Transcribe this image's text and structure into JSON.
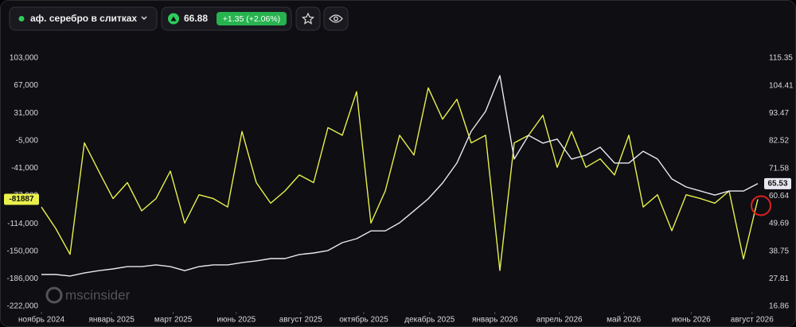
{
  "header": {
    "title": "аф. серебро в слитках",
    "price": "66.88",
    "change": "+1.35 (+2.06%)"
  },
  "chart_data": {
    "type": "line",
    "watermark": "mscinsider",
    "x": [
      0,
      2,
      4,
      6,
      8,
      10,
      12,
      14,
      16,
      18,
      20,
      22,
      24,
      26,
      28,
      30,
      32,
      34,
      36,
      38,
      40,
      42,
      44,
      46,
      48,
      50,
      52,
      54,
      56,
      58,
      60,
      62,
      64,
      66,
      68,
      70,
      72,
      74,
      76,
      78,
      80,
      82,
      84,
      86,
      88,
      90,
      92,
      94,
      96,
      98,
      100
    ],
    "xlim": [
      0,
      100
    ],
    "xticks": [
      {
        "value": 0,
        "label": "ноябрь 2024"
      },
      {
        "value": 9.8,
        "label": "январь 2025"
      },
      {
        "value": 18.4,
        "label": "март 2025"
      },
      {
        "value": 27.2,
        "label": "июнь 2025"
      },
      {
        "value": 36.2,
        "label": "август 2025"
      },
      {
        "value": 45,
        "label": "октябрь 2025"
      },
      {
        "value": 54.2,
        "label": "декабрь 2025"
      },
      {
        "value": 63.3,
        "label": "январь 2026"
      },
      {
        "value": 72.3,
        "label": "апрель 2026"
      },
      {
        "value": 81.3,
        "label": "май 2026"
      },
      {
        "value": 90.7,
        "label": "июнь 2026"
      },
      {
        "value": 99.2,
        "label": "август 2026"
      }
    ],
    "ylim": [
      -222000,
      103000
    ],
    "yticks": [
      {
        "value": 103000,
        "label": "103,000"
      },
      {
        "value": 67000,
        "label": "67,000"
      },
      {
        "value": 31000,
        "label": "31,000"
      },
      {
        "value": -5000,
        "label": "-5,000"
      },
      {
        "value": -41000,
        "label": "-41,000"
      },
      {
        "value": -77000,
        "label": "-77,000"
      },
      {
        "value": -114000,
        "label": "-114,000"
      },
      {
        "value": -150000,
        "label": "-150,000"
      },
      {
        "value": -186000,
        "label": "-186,000"
      },
      {
        "value": -222000,
        "label": "-222,000"
      }
    ],
    "y2lim": [
      16.86,
      115.35
    ],
    "y2ticks": [
      115.35,
      104.41,
      93.47,
      82.52,
      71.58,
      60.64,
      49.69,
      38.75,
      27.81,
      16.86
    ],
    "grid": false,
    "series": [
      {
        "color": "#e9f04c",
        "axis": "y",
        "values": [
          -92000,
          -120000,
          -154000,
          -8000,
          -45000,
          -81000,
          -60000,
          -97000,
          -81000,
          -45000,
          -113000,
          -76000,
          -81000,
          -92000,
          7000,
          -60000,
          -87000,
          -71000,
          -50000,
          -60000,
          12000,
          2000,
          59000,
          -113000,
          -71000,
          2000,
          -24000,
          64000,
          23000,
          49000,
          -8000,
          2000,
          -175000,
          -8000,
          2000,
          28000,
          -40000,
          7000,
          -40000,
          -29000,
          -50000,
          2000,
          -92000,
          -76000,
          -123000,
          -76000,
          -81000,
          -87000,
          -71000,
          -160000,
          -81887
        ]
      },
      {
        "color": "#e8e8f0",
        "axis": "y2",
        "values": [
          29.5,
          29.5,
          28.9,
          30.1,
          31.0,
          31.7,
          32.6,
          32.6,
          33.3,
          32.6,
          31.0,
          32.6,
          33.3,
          33.3,
          34.2,
          34.9,
          35.8,
          35.8,
          37.4,
          38.0,
          39.0,
          42.1,
          43.7,
          46.8,
          46.8,
          50.0,
          54.7,
          59.5,
          65.8,
          73.7,
          86.3,
          94.2,
          108.4,
          75.3,
          84.7,
          81.6,
          83.2,
          75.3,
          76.8,
          80.0,
          73.7,
          73.7,
          78.4,
          75.3,
          67.4,
          64.2,
          62.6,
          61.0,
          62.6,
          62.6,
          65.53
        ]
      }
    ]
  }
}
